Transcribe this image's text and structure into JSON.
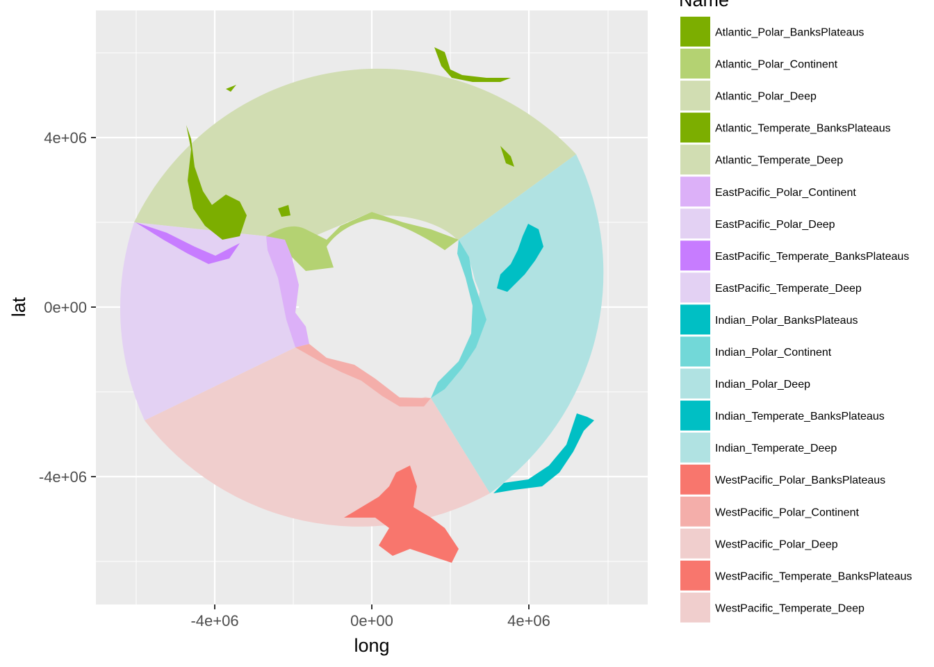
{
  "plot": {
    "xlabel": "long",
    "ylabel": "lat",
    "x_ticks": [
      "-4e+06",
      "0e+00",
      "4e+06"
    ],
    "y_ticks": [
      "4e+06",
      "0e+00",
      "-4e+06"
    ]
  },
  "legend": {
    "title": "Name",
    "items": [
      {
        "label": "Atlantic_Polar_BanksPlateaus",
        "color": "#7cae00"
      },
      {
        "label": "Atlantic_Polar_Continent",
        "color": "#b4d272"
      },
      {
        "label": "Atlantic_Polar_Deep",
        "color": "#d1ddb2"
      },
      {
        "label": "Atlantic_Temperate_BanksPlateaus",
        "color": "#7cae00"
      },
      {
        "label": "Atlantic_Temperate_Deep",
        "color": "#d1ddb2"
      },
      {
        "label": "EastPacific_Polar_Continent",
        "color": "#dcb0f8"
      },
      {
        "label": "EastPacific_Polar_Deep",
        "color": "#e3d1f3"
      },
      {
        "label": "EastPacific_Temperate_BanksPlateaus",
        "color": "#c77cff"
      },
      {
        "label": "EastPacific_Temperate_Deep",
        "color": "#e3d1f3"
      },
      {
        "label": "Indian_Polar_BanksPlateaus",
        "color": "#00bfc4"
      },
      {
        "label": "Indian_Polar_Continent",
        "color": "#72d8d8"
      },
      {
        "label": "Indian_Polar_Deep",
        "color": "#b0e2e2"
      },
      {
        "label": "Indian_Temperate_BanksPlateaus",
        "color": "#00bfc4"
      },
      {
        "label": "Indian_Temperate_Deep",
        "color": "#b0e2e2"
      },
      {
        "label": "WestPacific_Polar_BanksPlateaus",
        "color": "#f8766d"
      },
      {
        "label": "WestPacific_Polar_Continent",
        "color": "#f4aeaa"
      },
      {
        "label": "WestPacific_Polar_Deep",
        "color": "#f0cecd"
      },
      {
        "label": "WestPacific_Temperate_BanksPlateaus",
        "color": "#f8766d"
      },
      {
        "label": "WestPacific_Temperate_Deep",
        "color": "#f0cecd"
      }
    ]
  },
  "colors": {
    "panel": "#ebebeb",
    "grid_major": "#ffffff",
    "atlantic_deep": "#d1ddb2",
    "atlantic_banks": "#7cae00",
    "atlantic_continent": "#b4d272",
    "eastpacific_deep": "#e3d1f3",
    "eastpacific_banks": "#c77cff",
    "eastpacific_continent": "#dcb0f8",
    "indian_deep": "#b0e2e2",
    "indian_banks": "#00bfc4",
    "indian_continent": "#72d8d8",
    "westpacific_deep": "#f0cecd",
    "westpacific_banks": "#f8766d",
    "westpacific_continent": "#f4aeaa"
  }
}
